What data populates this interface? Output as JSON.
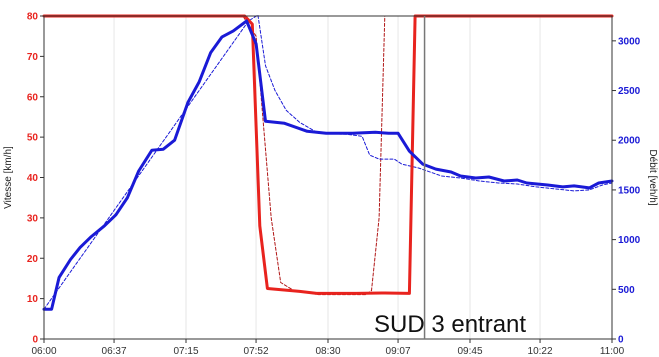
{
  "chart_data": {
    "type": "line",
    "ylabel": "Vitesse [km/h]",
    "y2label": "Débit [veh/h]",
    "ylim": [
      0,
      80
    ],
    "y2lim": [
      0,
      3250
    ],
    "yticks": [
      0,
      10,
      20,
      30,
      40,
      50,
      60,
      70,
      80
    ],
    "y2ticks": [
      0,
      500,
      1000,
      1500,
      2000,
      2500,
      3000
    ],
    "xlim": [
      "06:00",
      "11:00"
    ],
    "xticks": [
      "06:00",
      "06:37",
      "07:15",
      "07:52",
      "08:30",
      "09:07",
      "09:45",
      "10:22",
      "11:00"
    ],
    "grid": "vertical",
    "annotation": "SUD 3 entrant",
    "marker_time": "09:21",
    "series": [
      {
        "axis": "left",
        "color": "#e8231e",
        "style": "solid",
        "points": [
          [
            "06:00",
            80
          ],
          [
            "07:46",
            80
          ],
          [
            "07:50",
            78
          ],
          [
            "07:54",
            28
          ],
          [
            "07:58",
            12.5
          ],
          [
            "08:15",
            11.8
          ],
          [
            "08:24",
            11.3
          ],
          [
            "08:45",
            11.3
          ],
          [
            "09:00",
            11.4
          ],
          [
            "09:13",
            11.3
          ],
          [
            "09:16",
            80
          ],
          [
            "11:00",
            80
          ]
        ]
      },
      {
        "axis": "left",
        "color": "#b01515",
        "style": "dashed",
        "points": [
          [
            "06:00",
            80
          ],
          [
            "07:45",
            80
          ],
          [
            "07:52",
            75
          ],
          [
            "08:00",
            30
          ],
          [
            "08:05",
            14
          ],
          [
            "08:12",
            12
          ],
          [
            "08:25",
            11
          ],
          [
            "08:50",
            11
          ],
          [
            "08:53",
            12
          ],
          [
            "08:57",
            30
          ],
          [
            "09:00",
            80
          ],
          [
            "11:00",
            80
          ]
        ]
      },
      {
        "axis": "right",
        "color": "#1a1ad6",
        "style": "solid",
        "points": [
          [
            "06:00",
            300
          ],
          [
            "06:04",
            300
          ],
          [
            "06:08",
            620
          ],
          [
            "06:14",
            800
          ],
          [
            "06:19",
            920
          ],
          [
            "06:25",
            1030
          ],
          [
            "06:32",
            1140
          ],
          [
            "06:38",
            1250
          ],
          [
            "06:44",
            1420
          ],
          [
            "06:50",
            1690
          ],
          [
            "06:57",
            1900
          ],
          [
            "07:03",
            1910
          ],
          [
            "07:09",
            2000
          ],
          [
            "07:16",
            2380
          ],
          [
            "07:22",
            2590
          ],
          [
            "07:28",
            2880
          ],
          [
            "07:34",
            3040
          ],
          [
            "07:40",
            3100
          ],
          [
            "07:47",
            3200
          ],
          [
            "07:52",
            2970
          ],
          [
            "07:57",
            2190
          ],
          [
            "08:07",
            2170
          ],
          [
            "08:19",
            2090
          ],
          [
            "08:29",
            2070
          ],
          [
            "08:43",
            2070
          ],
          [
            "08:55",
            2080
          ],
          [
            "09:02",
            2070
          ],
          [
            "09:07",
            2070
          ],
          [
            "09:13",
            1890
          ],
          [
            "09:20",
            1760
          ],
          [
            "09:27",
            1710
          ],
          [
            "09:35",
            1680
          ],
          [
            "09:40",
            1640
          ],
          [
            "09:48",
            1620
          ],
          [
            "09:55",
            1630
          ],
          [
            "10:03",
            1590
          ],
          [
            "10:10",
            1600
          ],
          [
            "10:15",
            1570
          ],
          [
            "10:26",
            1550
          ],
          [
            "10:34",
            1530
          ],
          [
            "10:40",
            1540
          ],
          [
            "10:48",
            1520
          ],
          [
            "10:53",
            1570
          ],
          [
            "11:00",
            1590
          ]
        ]
      },
      {
        "axis": "right",
        "color": "#1a1ad6",
        "style": "dashed",
        "points": [
          [
            "06:00",
            300
          ],
          [
            "07:48",
            3200
          ],
          [
            "07:53",
            3260
          ],
          [
            "07:57",
            2750
          ],
          [
            "08:02",
            2500
          ],
          [
            "08:08",
            2300
          ],
          [
            "08:15",
            2180
          ],
          [
            "08:25",
            2070
          ],
          [
            "08:40",
            2060
          ],
          [
            "08:48",
            2040
          ],
          [
            "08:52",
            1850
          ],
          [
            "08:57",
            1810
          ],
          [
            "09:05",
            1810
          ],
          [
            "09:09",
            1760
          ],
          [
            "09:18",
            1720
          ],
          [
            "09:30",
            1640
          ],
          [
            "09:40",
            1620
          ],
          [
            "09:50",
            1590
          ],
          [
            "10:00",
            1570
          ],
          [
            "10:10",
            1560
          ],
          [
            "10:20",
            1530
          ],
          [
            "10:30",
            1510
          ],
          [
            "10:40",
            1490
          ],
          [
            "10:48",
            1500
          ],
          [
            "10:55",
            1550
          ],
          [
            "11:00",
            1570
          ]
        ]
      }
    ]
  }
}
